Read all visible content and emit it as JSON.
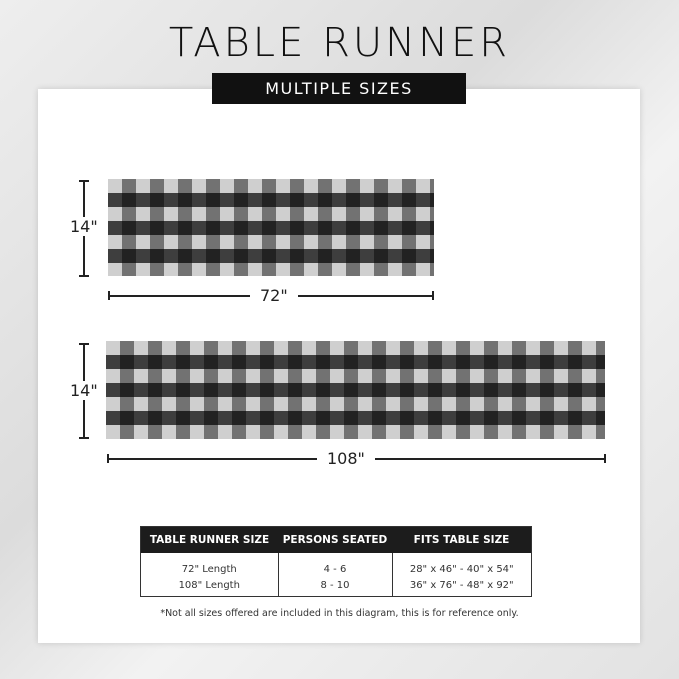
{
  "title": "TABLE RUNNER",
  "subtitle": "MULTIPLE SIZES",
  "runners": [
    {
      "width_label": "14\"",
      "length_label": "72\""
    },
    {
      "width_label": "14\"",
      "length_label": "108\""
    }
  ],
  "table": {
    "headers": [
      "TABLE RUNNER SIZE",
      "PERSONS SEATED",
      "FITS TABLE SIZE"
    ],
    "rows": [
      [
        "72\" Length",
        "4 - 6",
        "28\" x 46\" - 40\" x 54\""
      ],
      [
        "108\" Length",
        "8 - 10",
        "36\" x 76\" - 48\" x 92\""
      ]
    ]
  },
  "note": "*Not all sizes offered are included in this diagram, this is for reference only."
}
